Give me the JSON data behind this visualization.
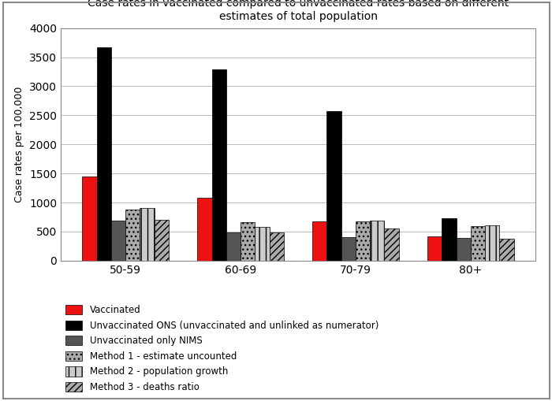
{
  "title": "Case rates in vaccinated compared to unvaccinated rates based on different\nestimates of total population",
  "ylabel": "Case rates per 100,000",
  "categories": [
    "50-59",
    "60-69",
    "70-79",
    "80+"
  ],
  "series": {
    "Vaccinated": [
      1450,
      1080,
      670,
      420
    ],
    "Unvaccinated ONS (unvaccinated and unlinked as numerator)": [
      3670,
      3290,
      2570,
      730
    ],
    "Unvaccinated only NIMS": [
      690,
      490,
      410,
      390
    ],
    "Method 1 - estimate uncounted": [
      880,
      660,
      680,
      590
    ],
    "Method 2 - population growth": [
      900,
      580,
      690,
      610
    ],
    "Method 3 - deaths ratio": [
      700,
      490,
      560,
      380
    ]
  },
  "facecolors": {
    "Vaccinated": "#EE1111",
    "Unvaccinated ONS (unvaccinated and unlinked as numerator)": "#000000",
    "Unvaccinated only NIMS": "#555555",
    "Method 1 - estimate uncounted": "#AAAAAA",
    "Method 2 - population growth": "#CCCCCC",
    "Method 3 - deaths ratio": "#AAAAAA"
  },
  "hatches": {
    "Vaccinated": "",
    "Unvaccinated ONS (unvaccinated and unlinked as numerator)": "",
    "Unvaccinated only NIMS": "",
    "Method 1 - estimate uncounted": "...",
    "Method 2 - population growth": "||",
    "Method 3 - deaths ratio": "////"
  },
  "ylim": [
    0,
    4000
  ],
  "yticks": [
    0,
    500,
    1000,
    1500,
    2000,
    2500,
    3000,
    3500,
    4000
  ],
  "background_color": "#FFFFFF",
  "grid_color": "#BBBBBB",
  "bar_width": 0.125,
  "legend_entries": [
    "Vaccinated",
    "Unvaccinated ONS (unvaccinated and unlinked as numerator)",
    "Unvaccinated only NIMS",
    "Method 1 - estimate uncounted",
    "Method 2 - population growth",
    "Method 3 - deaths ratio"
  ]
}
